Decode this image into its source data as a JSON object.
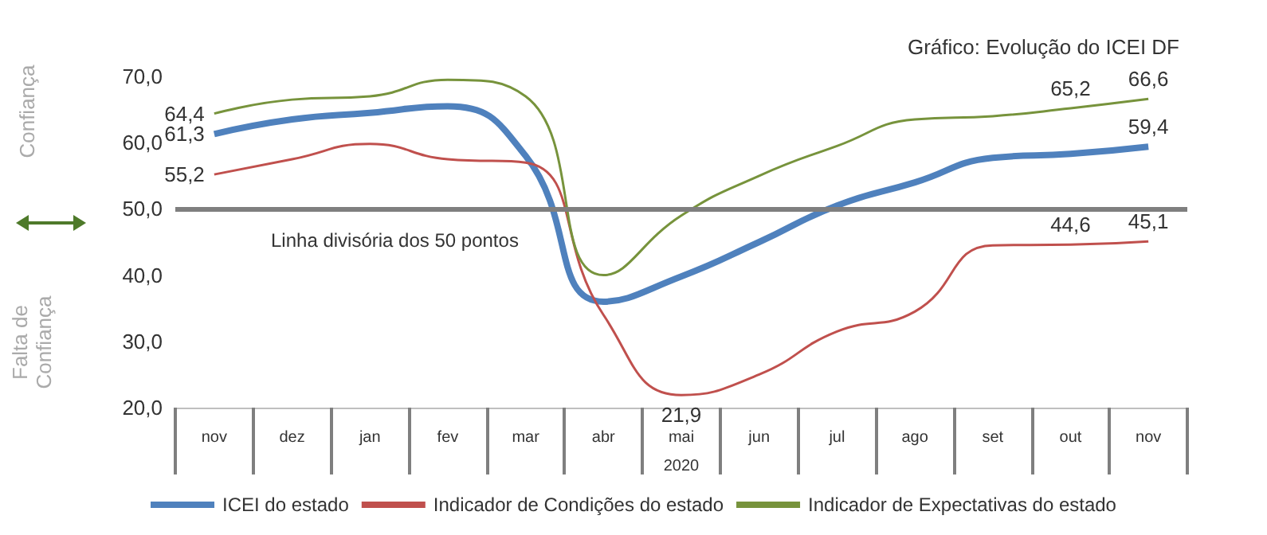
{
  "chart_data": {
    "type": "line",
    "title": "Gráfico: Evolução do ICEI DF",
    "xlabel": "2020",
    "categories": [
      "nov",
      "dez",
      "jan",
      "fev",
      "mar",
      "abr",
      "mai",
      "jun",
      "jul",
      "ago",
      "set",
      "out",
      "nov"
    ],
    "series": [
      {
        "name": "ICEI do estado",
        "color": "#4f81bd",
        "values": [
          61.3,
          63.5,
          64.5,
          65.5,
          58,
          36,
          39.8,
          45,
          50.5,
          54,
          57.7,
          58.3,
          59.4
        ],
        "value_labels": [
          "61,3",
          null,
          null,
          null,
          null,
          null,
          null,
          null,
          null,
          null,
          null,
          null,
          "59,4"
        ]
      },
      {
        "name": "Indicador de Condições do estado",
        "color": "#c0504d",
        "values": [
          55.2,
          57.5,
          59.8,
          57.5,
          57,
          34,
          21.9,
          25,
          31.5,
          34.5,
          44.5,
          44.6,
          45.1
        ],
        "value_labels": [
          "55,2",
          null,
          null,
          null,
          null,
          null,
          "21,9",
          null,
          null,
          null,
          null,
          "44,6",
          "45,1"
        ]
      },
      {
        "name": "Indicador de Expectativas do estado",
        "color": "#77933c",
        "values": [
          64.4,
          66.5,
          67,
          69.5,
          67,
          40,
          49,
          55,
          59.5,
          63.5,
          64,
          65.2,
          66.6
        ],
        "value_labels": [
          "64,4",
          null,
          null,
          null,
          null,
          null,
          null,
          null,
          null,
          null,
          null,
          "65,2",
          "66,6"
        ]
      }
    ],
    "ylim": [
      20,
      70
    ],
    "yticks": [
      {
        "value": 20,
        "label": "20,0"
      },
      {
        "value": 30,
        "label": "30,0"
      },
      {
        "value": 40,
        "label": "40,0"
      },
      {
        "value": 50,
        "label": "50,0"
      },
      {
        "value": 60,
        "label": "60,0"
      },
      {
        "value": 70,
        "label": "70,0"
      }
    ],
    "ref_lines": [
      {
        "axis": "y",
        "value": 50,
        "label": "Linha divisória dos 50 pontos",
        "color": "#7f7f7f"
      }
    ],
    "annotations": [
      "Confiança",
      "Falta de Confiança"
    ],
    "legend": "bottom",
    "grid": false,
    "marker": "none",
    "line_style": "solid"
  }
}
